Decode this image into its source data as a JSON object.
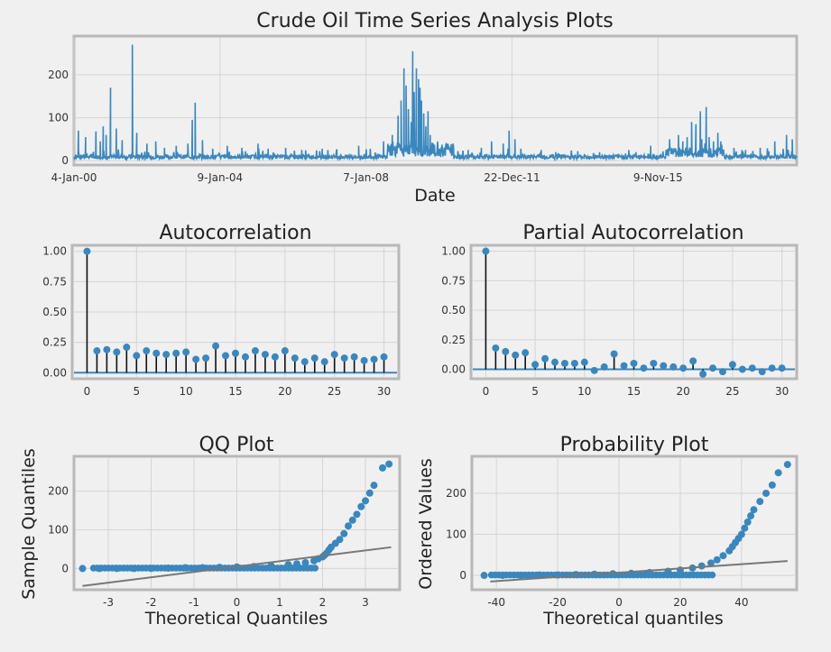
{
  "chart_data": [
    {
      "id": "ts",
      "type": "line",
      "title": "Crude Oil Time Series Analysis Plots",
      "xlabel": "Date",
      "ylabel": "",
      "xlim": [
        0,
        4950
      ],
      "ylim": [
        -10,
        290
      ],
      "x_ticks": [
        {
          "label": "4-Jan-00",
          "pos": 0
        },
        {
          "label": "9-Jan-04",
          "pos": 1000
        },
        {
          "label": "7-Jan-08",
          "pos": 2000
        },
        {
          "label": "22-Dec-11",
          "pos": 3000
        },
        {
          "label": "9-Nov-15",
          "pos": 4000
        }
      ],
      "y_ticks": [
        0,
        100,
        200
      ],
      "color": "#3a87bd",
      "spikes": [
        [
          30,
          70
        ],
        [
          80,
          55
        ],
        [
          150,
          68
        ],
        [
          180,
          45
        ],
        [
          200,
          80
        ],
        [
          220,
          60
        ],
        [
          250,
          170
        ],
        [
          290,
          75
        ],
        [
          330,
          48
        ],
        [
          400,
          270
        ],
        [
          430,
          65
        ],
        [
          500,
          40
        ],
        [
          560,
          45
        ],
        [
          620,
          30
        ],
        [
          700,
          35
        ],
        [
          780,
          40
        ],
        [
          810,
          95
        ],
        [
          830,
          135
        ],
        [
          880,
          48
        ],
        [
          950,
          28
        ],
        [
          1050,
          35
        ],
        [
          1150,
          30
        ],
        [
          1260,
          40
        ],
        [
          1330,
          28
        ],
        [
          1450,
          30
        ],
        [
          1560,
          25
        ],
        [
          1700,
          28
        ],
        [
          1800,
          25
        ],
        [
          1950,
          35
        ],
        [
          2120,
          45
        ],
        [
          2180,
          60
        ],
        [
          2220,
          105
        ],
        [
          2240,
          140
        ],
        [
          2260,
          215
        ],
        [
          2275,
          175
        ],
        [
          2290,
          120
        ],
        [
          2310,
          90
        ],
        [
          2320,
          255
        ],
        [
          2330,
          160
        ],
        [
          2345,
          215
        ],
        [
          2360,
          190
        ],
        [
          2370,
          170
        ],
        [
          2380,
          140
        ],
        [
          2395,
          110
        ],
        [
          2410,
          80
        ],
        [
          2425,
          115
        ],
        [
          2440,
          60
        ],
        [
          2460,
          40
        ],
        [
          2520,
          35
        ],
        [
          2600,
          30
        ],
        [
          2700,
          25
        ],
        [
          2790,
          30
        ],
        [
          2860,
          45
        ],
        [
          2940,
          40
        ],
        [
          2980,
          70
        ],
        [
          3020,
          50
        ],
        [
          3060,
          28
        ],
        [
          3200,
          25
        ],
        [
          3300,
          20
        ],
        [
          3450,
          22
        ],
        [
          3600,
          20
        ],
        [
          3800,
          25
        ],
        [
          3950,
          35
        ],
        [
          4080,
          50
        ],
        [
          4140,
          60
        ],
        [
          4170,
          45
        ],
        [
          4200,
          55
        ],
        [
          4230,
          90
        ],
        [
          4260,
          85
        ],
        [
          4290,
          115
        ],
        [
          4300,
          50
        ],
        [
          4330,
          125
        ],
        [
          4350,
          55
        ],
        [
          4380,
          45
        ],
        [
          4410,
          65
        ],
        [
          4430,
          45
        ],
        [
          4520,
          30
        ],
        [
          4600,
          25
        ],
        [
          4700,
          30
        ],
        [
          4800,
          45
        ],
        [
          4880,
          60
        ],
        [
          4920,
          50
        ]
      ]
    },
    {
      "id": "acf",
      "type": "scatter",
      "title": "Autocorrelation",
      "xlabel": "",
      "ylabel": "",
      "xlim": [
        -1.5,
        31.5
      ],
      "ylim": [
        -0.05,
        1.05
      ],
      "x_ticks": [
        0,
        5,
        10,
        15,
        20,
        25,
        30
      ],
      "y_ticks": [
        0.0,
        0.25,
        0.5,
        0.75,
        1.0
      ],
      "y_tick_labels": [
        "0.00",
        "0.25",
        "0.50",
        "0.75",
        "1.00"
      ],
      "x": [
        0,
        1,
        2,
        3,
        4,
        5,
        6,
        7,
        8,
        9,
        10,
        11,
        12,
        13,
        14,
        15,
        16,
        17,
        18,
        19,
        20,
        21,
        22,
        23,
        24,
        25,
        26,
        27,
        28,
        29,
        30
      ],
      "values": [
        1.0,
        0.18,
        0.19,
        0.17,
        0.21,
        0.14,
        0.18,
        0.16,
        0.15,
        0.16,
        0.17,
        0.11,
        0.12,
        0.22,
        0.14,
        0.16,
        0.13,
        0.18,
        0.15,
        0.13,
        0.18,
        0.12,
        0.09,
        0.12,
        0.09,
        0.15,
        0.12,
        0.13,
        0.1,
        0.11,
        0.13
      ]
    },
    {
      "id": "pacf",
      "type": "scatter",
      "title": "Partial Autocorrelation",
      "xlabel": "",
      "ylabel": "",
      "xlim": [
        -1.5,
        31.5
      ],
      "ylim": [
        -0.08,
        1.05
      ],
      "x_ticks": [
        0,
        5,
        10,
        15,
        20,
        25,
        30
      ],
      "y_ticks": [
        0.0,
        0.25,
        0.5,
        0.75,
        1.0
      ],
      "y_tick_labels": [
        "0.00",
        "0.25",
        "0.50",
        "0.75",
        "1.00"
      ],
      "x": [
        0,
        1,
        2,
        3,
        4,
        5,
        6,
        7,
        8,
        9,
        10,
        11,
        12,
        13,
        14,
        15,
        16,
        17,
        18,
        19,
        20,
        21,
        22,
        23,
        24,
        25,
        26,
        27,
        28,
        29,
        30
      ],
      "values": [
        1.0,
        0.18,
        0.15,
        0.12,
        0.14,
        0.04,
        0.09,
        0.06,
        0.05,
        0.05,
        0.06,
        -0.01,
        0.02,
        0.13,
        0.03,
        0.05,
        0.01,
        0.05,
        0.03,
        0.02,
        0.01,
        0.07,
        -0.04,
        0.01,
        -0.02,
        0.04,
        0.0,
        0.01,
        -0.02,
        0.01,
        0.01
      ]
    },
    {
      "id": "qq",
      "type": "scatter",
      "title": "QQ Plot",
      "xlabel": "Theoretical Quantiles",
      "ylabel": "Sample Quantiles",
      "xlim": [
        -3.8,
        3.8
      ],
      "ylim": [
        -55,
        290
      ],
      "x_ticks": [
        -3,
        -2,
        -1,
        0,
        1,
        2,
        3
      ],
      "y_ticks": [
        0,
        100,
        200
      ],
      "points": [
        [
          -3.6,
          0
        ],
        [
          -3.2,
          0
        ],
        [
          -2.8,
          0
        ],
        [
          -2.4,
          0
        ],
        [
          -2.0,
          0.5
        ],
        [
          -1.6,
          1
        ],
        [
          -1.2,
          2
        ],
        [
          -0.8,
          2
        ],
        [
          -0.4,
          3
        ],
        [
          0,
          4
        ],
        [
          0.4,
          5
        ],
        [
          0.8,
          7
        ],
        [
          1.2,
          10
        ],
        [
          1.4,
          12
        ],
        [
          1.6,
          15
        ],
        [
          1.8,
          20
        ],
        [
          1.9,
          25
        ],
        [
          2.0,
          30
        ],
        [
          2.05,
          35
        ],
        [
          2.1,
          40
        ],
        [
          2.15,
          48
        ],
        [
          2.2,
          55
        ],
        [
          2.3,
          65
        ],
        [
          2.4,
          75
        ],
        [
          2.5,
          90
        ],
        [
          2.6,
          110
        ],
        [
          2.7,
          125
        ],
        [
          2.8,
          140
        ],
        [
          2.9,
          160
        ],
        [
          3.0,
          175
        ],
        [
          3.1,
          195
        ],
        [
          3.2,
          215
        ],
        [
          3.4,
          260
        ],
        [
          3.55,
          270
        ]
      ],
      "fit_line": [
        [
          -3.6,
          -45
        ],
        [
          3.6,
          55
        ]
      ],
      "fit_color": "#777777"
    },
    {
      "id": "prob",
      "type": "scatter",
      "title": "Probability Plot",
      "xlabel": "Theoretical quantiles",
      "ylabel": "Ordered Values",
      "xlim": [
        -48,
        58
      ],
      "ylim": [
        -35,
        290
      ],
      "x_ticks": [
        -40,
        -20,
        0,
        20,
        40
      ],
      "y_ticks": [
        0,
        100,
        200
      ],
      "points": [
        [
          -44,
          0
        ],
        [
          -38,
          0
        ],
        [
          -32,
          0
        ],
        [
          -26,
          1
        ],
        [
          -20,
          1
        ],
        [
          -14,
          2
        ],
        [
          -8,
          3
        ],
        [
          -2,
          4
        ],
        [
          4,
          5
        ],
        [
          10,
          7
        ],
        [
          16,
          10
        ],
        [
          20,
          13
        ],
        [
          24,
          18
        ],
        [
          27,
          23
        ],
        [
          30,
          30
        ],
        [
          32,
          38
        ],
        [
          34,
          48
        ],
        [
          36,
          60
        ],
        [
          37,
          70
        ],
        [
          38,
          80
        ],
        [
          39,
          90
        ],
        [
          40,
          100
        ],
        [
          41,
          115
        ],
        [
          42,
          130
        ],
        [
          43,
          145
        ],
        [
          44,
          160
        ],
        [
          46,
          180
        ],
        [
          48,
          200
        ],
        [
          50,
          220
        ],
        [
          52,
          250
        ],
        [
          55,
          270
        ]
      ],
      "fit_line": [
        [
          -42,
          -15
        ],
        [
          55,
          35
        ]
      ],
      "fit_color": "#777777"
    }
  ]
}
